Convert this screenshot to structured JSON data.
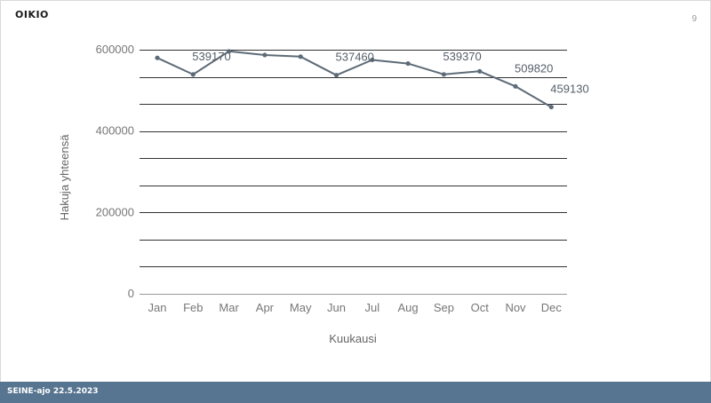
{
  "slide": {
    "logo_text": "OIKIO",
    "page_number": "9",
    "footer_text": "SEINE-ajo 22.5.2023"
  },
  "colors": {
    "line": "#5d6b78",
    "grid": "#333333",
    "axis_text": "#777777",
    "label_text": "#555f69",
    "footer_bg": "#577590"
  },
  "chart_data": {
    "type": "line",
    "title": "",
    "xlabel": "Kuukausi",
    "ylabel": "Hakuja yhteensä",
    "categories": [
      "Jan",
      "Feb",
      "Mar",
      "Apr",
      "May",
      "Jun",
      "Jul",
      "Aug",
      "Sep",
      "Oct",
      "Nov",
      "Dec"
    ],
    "series": [
      {
        "values": [
          580000,
          539170,
          596000,
          587000,
          583000,
          537460,
          575000,
          566000,
          539370,
          547000,
          509820,
          459130
        ]
      }
    ],
    "data_labels": [
      {
        "index": 1,
        "text": "539170"
      },
      {
        "index": 5,
        "text": "537460"
      },
      {
        "index": 8,
        "text": "539370"
      },
      {
        "index": 10,
        "text": "509820"
      },
      {
        "index": 11,
        "text": "459130"
      }
    ],
    "ylim": [
      0,
      600000
    ],
    "y_ticks": [
      {
        "value": 0,
        "label": "0"
      },
      {
        "value": 200000,
        "label": "200000"
      },
      {
        "value": 400000,
        "label": "400000"
      },
      {
        "value": 600000,
        "label": "600000"
      }
    ],
    "gridlines": [
      0,
      66667,
      133333,
      200000,
      266667,
      333333,
      400000,
      466667,
      533333,
      600000
    ],
    "grid": true,
    "legend": "none"
  }
}
